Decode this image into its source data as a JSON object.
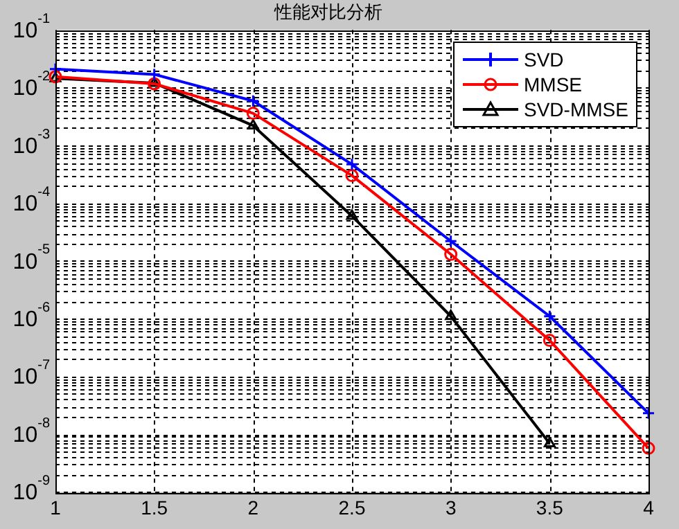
{
  "chart_data": {
    "type": "line",
    "title": "性能对比分析",
    "x": [
      1,
      1.5,
      2,
      2.5,
      3,
      3.5,
      4
    ],
    "series": [
      {
        "name": "SVD",
        "color": "#0000ff",
        "marker": "cross",
        "values": [
          0.021,
          0.017,
          0.0059,
          0.00047,
          2.2e-05,
          1.1e-06,
          2.3e-08
        ]
      },
      {
        "name": "MMSE",
        "color": "#ff0000",
        "marker": "circle",
        "values": [
          0.0155,
          0.0117,
          0.0036,
          0.0003,
          1.3e-05,
          4.2e-07,
          5.7e-09
        ]
      },
      {
        "name": "SVD-MMSE",
        "color": "#000000",
        "marker": "triangle",
        "values": [
          0.0145,
          0.012,
          0.0022,
          6e-05,
          1.1e-06,
          6.9e-09,
          null
        ]
      }
    ],
    "log": "y",
    "xlim": [
      1,
      4
    ],
    "xticks": [
      1,
      1.5,
      2,
      2.5,
      3,
      3.5,
      4
    ],
    "ylim": [
      1e-09,
      0.1
    ],
    "yticks": [
      {
        "value": 1e-09,
        "label": "10$^{-9}$"
      },
      {
        "value": 1e-08,
        "label": "10$^{-8}$"
      },
      {
        "value": 1e-07,
        "label": "10$^{-7}$"
      },
      {
        "value": 1e-06,
        "label": "10$^{-6}$"
      },
      {
        "value": 1e-05,
        "label": "10$^{-5}$"
      },
      {
        "value": 0.0001,
        "label": "10$^{-4}$"
      },
      {
        "value": 0.001,
        "label": "10$^{-3}$"
      },
      {
        "value": 0.01,
        "label": "10$^{-2}$"
      },
      {
        "value": 0.1,
        "label": "10$^{-1}$"
      }
    ],
    "grid": true,
    "legend": "top right",
    "line_style": "solid"
  }
}
